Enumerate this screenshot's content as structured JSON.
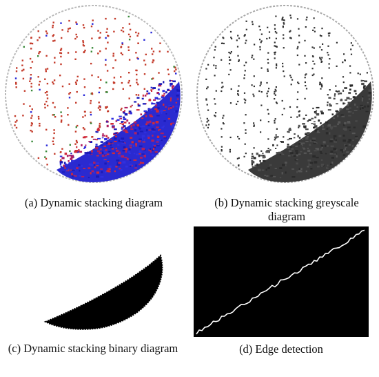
{
  "panels": [
    {
      "id": "a",
      "caption": "(a) Dynamic stacking diagram"
    },
    {
      "id": "b",
      "caption": "(b) Dynamic stacking greyscale diagram"
    },
    {
      "id": "c",
      "caption": "(c) Dynamic stacking binary diagram"
    },
    {
      "id": "d",
      "caption": "(d) Edge detection"
    }
  ],
  "colors": {
    "particle_red": "#c43c2c",
    "particle_blue": "#2828d8",
    "particle_grey": "#333333",
    "binary_fill": "#000000",
    "edge_background": "#000000",
    "edge_line": "#ffffff"
  }
}
